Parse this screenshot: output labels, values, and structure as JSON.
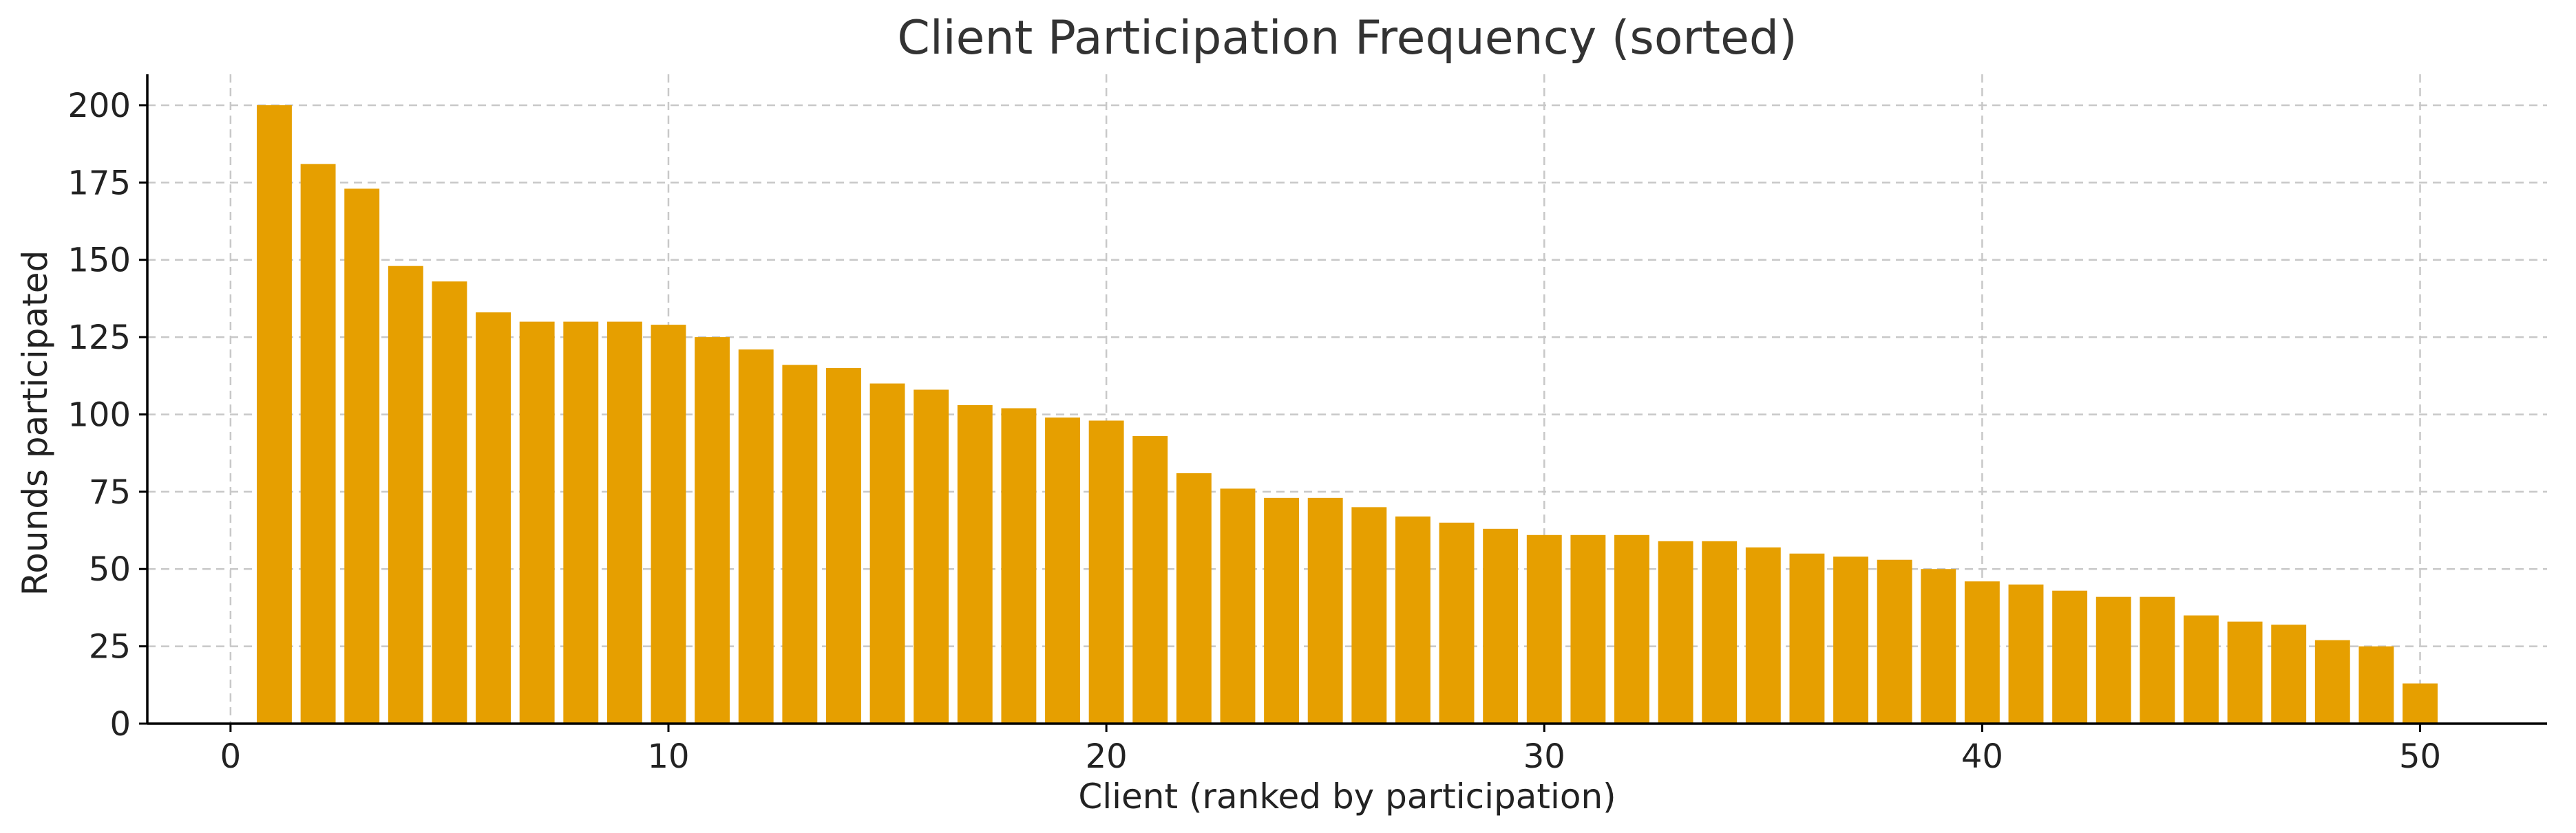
{
  "chart_data": {
    "type": "bar",
    "title": "Client Participation Frequency (sorted)",
    "xlabel": "Client (ranked by participation)",
    "ylabel": "Rounds participated",
    "x": [
      1,
      2,
      3,
      4,
      5,
      6,
      7,
      8,
      9,
      10,
      11,
      12,
      13,
      14,
      15,
      16,
      17,
      18,
      19,
      20,
      21,
      22,
      23,
      24,
      25,
      26,
      27,
      28,
      29,
      30,
      31,
      32,
      33,
      34,
      35,
      36,
      37,
      38,
      39,
      40,
      41,
      42,
      43,
      44,
      45,
      46,
      47,
      48,
      49,
      50
    ],
    "values": [
      200,
      181,
      173,
      148,
      143,
      133,
      130,
      130,
      130,
      129,
      125,
      121,
      116,
      115,
      110,
      108,
      103,
      102,
      99,
      98,
      93,
      81,
      76,
      73,
      73,
      70,
      67,
      65,
      63,
      61,
      61,
      61,
      59,
      59,
      57,
      55,
      54,
      53,
      50,
      46,
      45,
      43,
      41,
      41,
      35,
      33,
      32,
      27,
      25,
      13
    ],
    "xlim": [
      -1.9,
      52.9
    ],
    "ylim": [
      0,
      210
    ],
    "xticks": [
      0,
      10,
      20,
      30,
      40,
      50
    ],
    "yticks": [
      0,
      25,
      50,
      75,
      100,
      125,
      150,
      175,
      200
    ],
    "grid": true,
    "bar_color": "#E69F00"
  }
}
